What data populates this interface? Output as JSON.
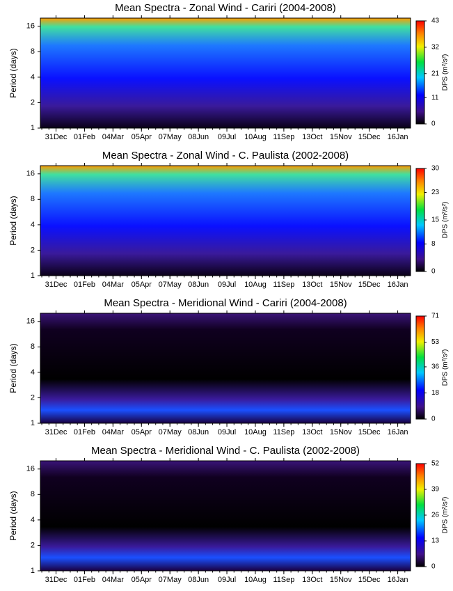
{
  "chart_data": [
    {
      "type": "heatmap",
      "title": "Mean Spectra - Zonal Wind - Cariri (2004-2008)",
      "ylabel": "Period (days)",
      "categories": [
        "31Dec",
        "01Feb",
        "04Mar",
        "05Apr",
        "07May",
        "08Jun",
        "09Jul",
        "10Aug",
        "11Sep",
        "13Oct",
        "15Nov",
        "15Dec",
        "16Jan"
      ],
      "yscale": "log",
      "ylim": [
        1,
        20
      ],
      "yticks": [
        1,
        2,
        4,
        8,
        16
      ],
      "colorbar_label": "DPS (m²/s²)",
      "clim": [
        0,
        43
      ],
      "cticks": [
        0,
        11,
        21,
        32,
        43
      ]
    },
    {
      "type": "heatmap",
      "title": "Mean Spectra - Zonal Wind - C. Paulista (2002-2008)",
      "ylabel": "Period (days)",
      "categories": [
        "31Dec",
        "01Feb",
        "04Mar",
        "05Apr",
        "07May",
        "08Jun",
        "09Jul",
        "10Aug",
        "11Sep",
        "13Oct",
        "15Nov",
        "15Dec",
        "16Jan"
      ],
      "yscale": "log",
      "ylim": [
        1,
        20
      ],
      "yticks": [
        1,
        2,
        4,
        8,
        16
      ],
      "colorbar_label": "DPS (m²/s²)",
      "clim": [
        0,
        30
      ],
      "cticks": [
        0,
        8,
        15,
        23,
        30
      ]
    },
    {
      "type": "heatmap",
      "title": "Mean Spectra - Meridional Wind - Cariri (2004-2008)",
      "ylabel": "Period (days)",
      "categories": [
        "31Dec",
        "01Feb",
        "04Mar",
        "05Apr",
        "07May",
        "08Jun",
        "09Jul",
        "10Aug",
        "11Sep",
        "13Oct",
        "15Nov",
        "15Dec",
        "16Jan"
      ],
      "yscale": "log",
      "ylim": [
        1,
        20
      ],
      "yticks": [
        1,
        2,
        4,
        8,
        16
      ],
      "colorbar_label": "DPS (m²/s²)",
      "clim": [
        0,
        71
      ],
      "cticks": [
        0,
        18,
        36,
        53,
        71
      ]
    },
    {
      "type": "heatmap",
      "title": "Mean Spectra - Meridional Wind - C. Paulista (2002-2008)",
      "ylabel": "Period (days)",
      "categories": [
        "31Dec",
        "01Feb",
        "04Mar",
        "05Apr",
        "07May",
        "08Jun",
        "09Jul",
        "10Aug",
        "11Sep",
        "13Oct",
        "15Nov",
        "15Dec",
        "16Jan"
      ],
      "yscale": "log",
      "ylim": [
        1,
        20
      ],
      "yticks": [
        1,
        2,
        4,
        8,
        16
      ],
      "colorbar_label": "DPS (m²/s²)",
      "clim": [
        0,
        52
      ],
      "cticks": [
        0,
        13,
        26,
        39,
        52
      ]
    }
  ]
}
